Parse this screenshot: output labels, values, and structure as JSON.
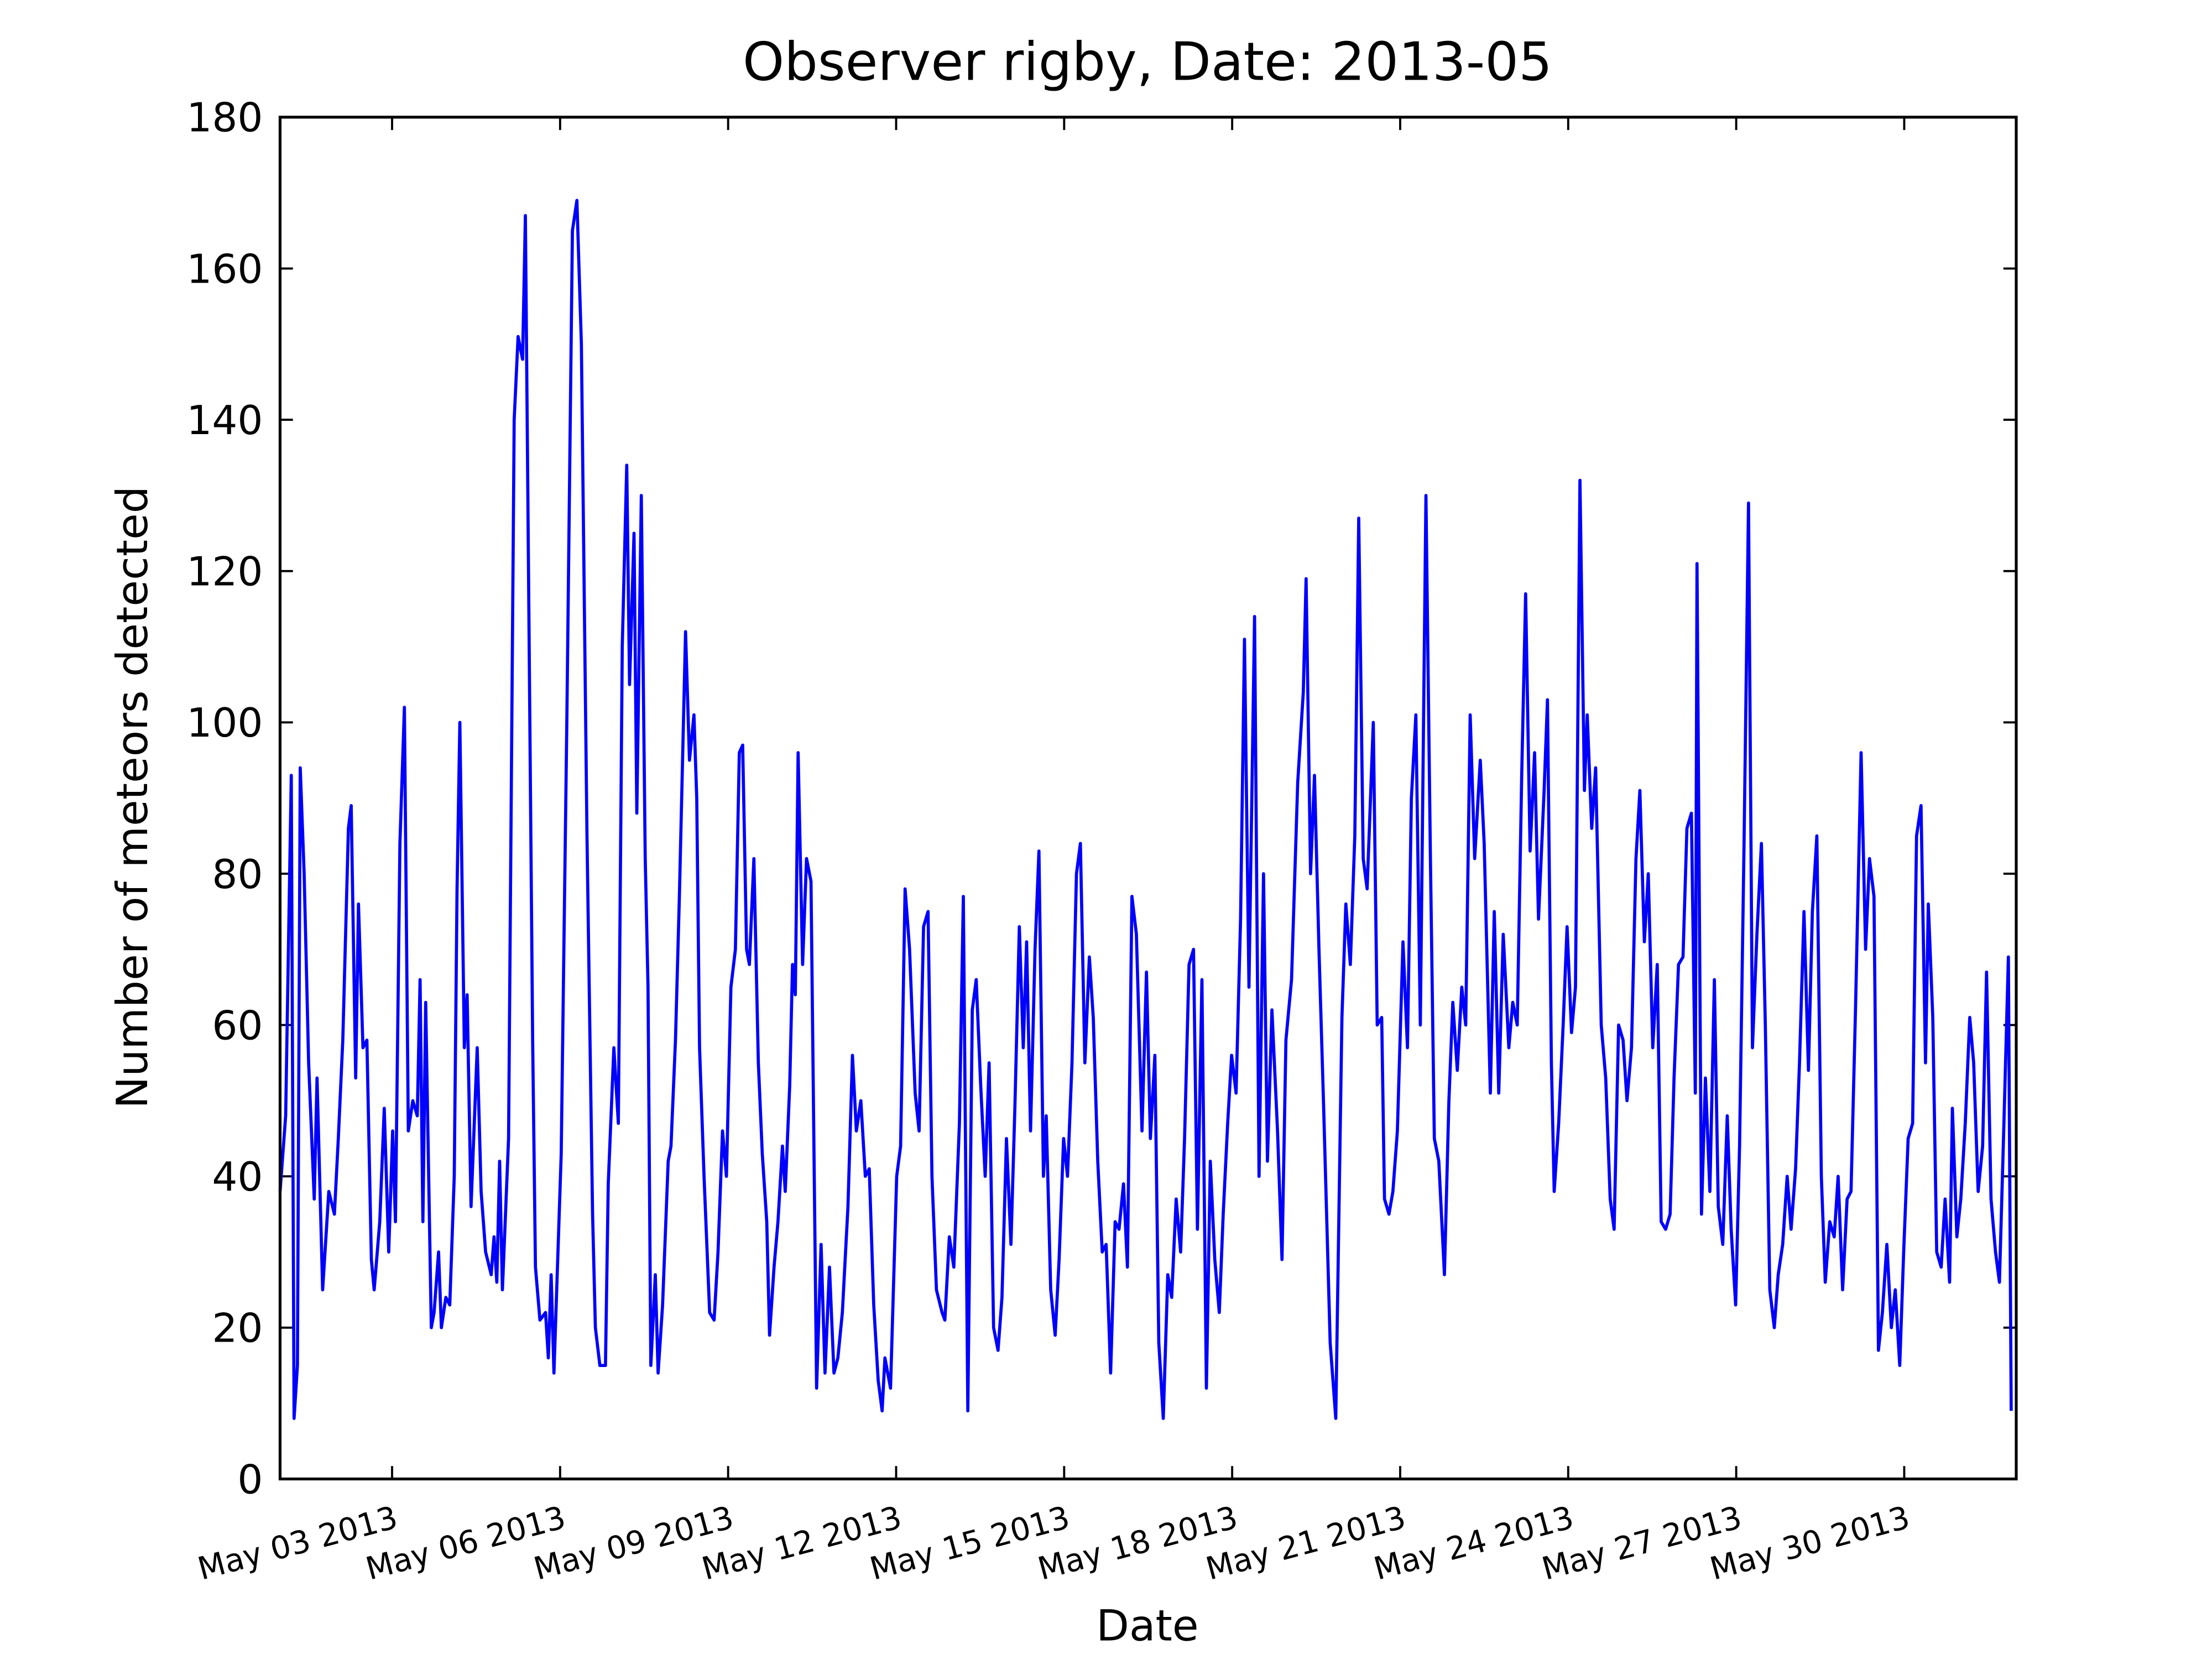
{
  "chart_data": {
    "type": "line",
    "title": "Observer rigby, Date: 2013-05",
    "x_label": "Date",
    "y_label": "Number of meteors detected",
    "color": "#0000ff",
    "xlim": [
      1,
      32
    ],
    "xticks": [
      {
        "value": 3,
        "label": "May 03 2013"
      },
      {
        "value": 6,
        "label": "May 06 2013"
      },
      {
        "value": 9,
        "label": "May 09 2013"
      },
      {
        "value": 12,
        "label": "May 12 2013"
      },
      {
        "value": 15,
        "label": "May 15 2013"
      },
      {
        "value": 18,
        "label": "May 18 2013"
      },
      {
        "value": 21,
        "label": "May 21 2013"
      },
      {
        "value": 24,
        "label": "May 24 2013"
      },
      {
        "value": 27,
        "label": "May 27 2013"
      },
      {
        "value": 30,
        "label": "May 30 2013"
      }
    ],
    "ylim": [
      0,
      180
    ],
    "yticks": [
      0,
      20,
      40,
      60,
      80,
      100,
      120,
      140,
      160,
      180
    ],
    "x": [
      1.0,
      1.1,
      1.2,
      1.25,
      1.31,
      1.36,
      1.43,
      1.51,
      1.61,
      1.66,
      1.76,
      1.87,
      1.97,
      2.04,
      2.12,
      2.22,
      2.27,
      2.35,
      2.4,
      2.48,
      2.55,
      2.63,
      2.68,
      2.78,
      2.86,
      2.94,
      3.01,
      3.06,
      3.14,
      3.22,
      3.29,
      3.37,
      3.45,
      3.5,
      3.55,
      3.6,
      3.7,
      3.75,
      3.83,
      3.88,
      3.96,
      4.03,
      4.11,
      4.16,
      4.21,
      4.29,
      4.34,
      4.41,
      4.52,
      4.59,
      4.67,
      4.77,
      4.82,
      4.87,
      4.92,
      4.97,
      5.08,
      5.18,
      5.25,
      5.33,
      5.38,
      5.46,
      5.51,
      5.56,
      5.64,
      5.74,
      5.79,
      5.84,
      5.89,
      6.02,
      6.12,
      6.22,
      6.3,
      6.38,
      6.48,
      6.58,
      6.63,
      6.71,
      6.81,
      6.86,
      6.96,
      7.04,
      7.11,
      7.19,
      7.24,
      7.32,
      7.37,
      7.45,
      7.52,
      7.57,
      7.62,
      7.7,
      7.75,
      7.83,
      7.93,
      7.98,
      8.06,
      8.13,
      8.24,
      8.31,
      8.39,
      8.44,
      8.49,
      8.57,
      8.67,
      8.75,
      8.82,
      8.9,
      8.97,
      9.05,
      9.13,
      9.2,
      9.26,
      9.33,
      9.38,
      9.46,
      9.54,
      9.61,
      9.69,
      9.74,
      9.82,
      9.89,
      9.97,
      10.02,
      10.1,
      10.15,
      10.2,
      10.25,
      10.33,
      10.4,
      10.48,
      10.58,
      10.66,
      10.73,
      10.81,
      10.89,
      10.96,
      11.04,
      11.14,
      11.22,
      11.29,
      11.37,
      11.45,
      11.52,
      11.6,
      11.68,
      11.75,
      11.8,
      11.9,
      12.01,
      12.08,
      12.16,
      12.24,
      12.34,
      12.41,
      12.49,
      12.57,
      12.64,
      12.72,
      12.82,
      12.87,
      12.95,
      13.03,
      13.13,
      13.2,
      13.28,
      13.36,
      13.43,
      13.51,
      13.59,
      13.66,
      13.74,
      13.82,
      13.89,
      13.97,
      14.05,
      14.12,
      14.2,
      14.27,
      14.33,
      14.4,
      14.48,
      14.55,
      14.63,
      14.68,
      14.76,
      14.84,
      14.91,
      14.99,
      15.06,
      15.14,
      15.22,
      15.29,
      15.37,
      15.45,
      15.52,
      15.6,
      15.68,
      15.75,
      15.83,
      15.91,
      15.98,
      16.06,
      16.13,
      16.21,
      16.29,
      16.39,
      16.47,
      16.54,
      16.62,
      16.69,
      16.77,
      16.85,
      16.92,
      17.0,
      17.08,
      17.15,
      17.23,
      17.31,
      17.38,
      17.46,
      17.54,
      17.61,
      17.69,
      17.77,
      17.84,
      17.92,
      17.99,
      18.07,
      18.15,
      18.22,
      18.3,
      18.4,
      18.48,
      18.56,
      18.63,
      18.71,
      18.81,
      18.89,
      18.96,
      19.06,
      19.17,
      19.27,
      19.32,
      19.4,
      19.47,
      19.55,
      19.63,
      19.75,
      19.85,
      19.96,
      20.03,
      20.11,
      20.19,
      20.26,
      20.34,
      20.41,
      20.52,
      20.59,
      20.67,
      20.72,
      20.8,
      20.87,
      20.95,
      21.05,
      21.13,
      21.2,
      21.28,
      21.36,
      21.46,
      21.54,
      21.61,
      21.69,
      21.79,
      21.87,
      21.94,
      22.02,
      22.1,
      22.17,
      22.25,
      22.33,
      22.43,
      22.5,
      22.61,
      22.68,
      22.76,
      22.84,
      22.94,
      23.01,
      23.09,
      23.17,
      23.24,
      23.32,
      23.4,
      23.47,
      23.57,
      23.63,
      23.7,
      23.75,
      23.83,
      23.91,
      23.98,
      24.06,
      24.13,
      24.21,
      24.29,
      24.34,
      24.42,
      24.49,
      24.59,
      24.67,
      24.75,
      24.82,
      24.9,
      24.98,
      25.05,
      25.13,
      25.21,
      25.28,
      25.36,
      25.43,
      25.51,
      25.59,
      25.66,
      25.74,
      25.82,
      25.89,
      25.97,
      26.05,
      26.12,
      26.2,
      26.27,
      26.3,
      26.38,
      26.45,
      26.53,
      26.61,
      26.68,
      26.76,
      26.84,
      26.91,
      26.99,
      27.06,
      27.14,
      27.22,
      27.29,
      27.37,
      27.45,
      27.52,
      27.6,
      27.68,
      27.75,
      27.83,
      27.91,
      27.98,
      28.06,
      28.13,
      28.21,
      28.29,
      28.36,
      28.44,
      28.52,
      28.59,
      28.67,
      28.75,
      28.82,
      28.9,
      28.98,
      29.05,
      29.13,
      29.23,
      29.31,
      29.38,
      29.46,
      29.54,
      29.61,
      29.69,
      29.77,
      29.84,
      29.92,
      29.99,
      30.07,
      30.15,
      30.22,
      30.3,
      30.38,
      30.43,
      30.51,
      30.58,
      30.66,
      30.73,
      30.81,
      30.86,
      30.94,
      31.01,
      31.09,
      31.17,
      31.24,
      31.32,
      31.4,
      31.47,
      31.55,
      31.63,
      31.7,
      31.78,
      31.86,
      31.91
    ],
    "values": [
      38,
      48,
      93,
      8,
      15,
      94,
      80,
      55,
      37,
      53,
      25,
      38,
      35,
      45,
      58,
      86,
      89,
      53,
      76,
      57,
      58,
      29,
      25,
      34,
      49,
      30,
      46,
      34,
      84,
      102,
      46,
      50,
      48,
      66,
      34,
      63,
      20,
      22,
      30,
      20,
      24,
      23,
      40,
      78,
      100,
      57,
      64,
      36,
      57,
      38,
      30,
      27,
      32,
      26,
      42,
      25,
      45,
      140,
      151,
      148,
      167,
      100,
      58,
      28,
      21,
      22,
      16,
      27,
      14,
      43,
      100,
      165,
      169,
      150,
      85,
      35,
      20,
      15,
      15,
      39,
      57,
      47,
      110,
      134,
      105,
      125,
      88,
      130,
      82,
      65,
      15,
      27,
      14,
      23,
      42,
      44,
      58,
      77,
      112,
      95,
      101,
      90,
      57,
      40,
      22,
      21,
      30,
      46,
      40,
      65,
      70,
      96,
      97,
      70,
      68,
      82,
      55,
      43,
      34,
      19,
      28,
      34,
      44,
      38,
      52,
      68,
      64,
      96,
      68,
      82,
      79,
      12,
      31,
      14,
      28,
      14,
      16,
      22,
      36,
      56,
      46,
      50,
      40,
      41,
      23,
      13,
      9,
      16,
      12,
      40,
      44,
      78,
      70,
      51,
      46,
      73,
      75,
      40,
      25,
      22,
      21,
      32,
      28,
      47,
      77,
      9,
      62,
      66,
      52,
      40,
      55,
      20,
      17,
      24,
      45,
      31,
      49,
      73,
      57,
      71,
      46,
      70,
      83,
      40,
      48,
      25,
      19,
      29,
      45,
      40,
      55,
      80,
      84,
      55,
      69,
      61,
      42,
      30,
      31,
      14,
      34,
      33,
      39,
      28,
      77,
      72,
      46,
      67,
      45,
      56,
      18,
      8,
      27,
      24,
      37,
      30,
      45,
      68,
      70,
      33,
      66,
      12,
      42,
      29,
      22,
      35,
      47,
      56,
      51,
      74,
      111,
      65,
      114,
      40,
      80,
      42,
      62,
      46,
      29,
      58,
      66,
      92,
      104,
      119,
      80,
      93,
      70,
      50,
      18,
      8,
      61,
      76,
      68,
      85,
      127,
      82,
      78,
      100,
      60,
      61,
      37,
      35,
      38,
      46,
      71,
      57,
      90,
      101,
      60,
      130,
      82,
      45,
      42,
      27,
      50,
      63,
      54,
      65,
      60,
      101,
      82,
      95,
      84,
      51,
      75,
      51,
      72,
      57,
      63,
      60,
      93,
      117,
      83,
      96,
      74,
      91,
      103,
      55,
      38,
      47,
      60,
      73,
      59,
      65,
      132,
      91,
      101,
      86,
      94,
      60,
      53,
      37,
      33,
      60,
      58,
      50,
      57,
      82,
      91,
      71,
      80,
      57,
      68,
      34,
      33,
      35,
      53,
      68,
      69,
      86,
      88,
      51,
      121,
      35,
      53,
      38,
      66,
      36,
      31,
      48,
      33,
      23,
      44,
      84,
      129,
      57,
      72,
      84,
      60,
      25,
      20,
      27,
      31,
      40,
      33,
      41,
      55,
      75,
      54,
      75,
      85,
      40,
      26,
      34,
      32,
      40,
      25,
      37,
      38,
      62,
      96,
      70,
      82,
      77,
      17,
      22,
      31,
      20,
      25,
      15,
      30,
      45,
      47,
      85,
      89,
      55,
      76,
      61,
      30,
      28,
      37,
      26,
      49,
      32,
      37,
      47,
      61,
      55,
      38,
      44,
      67,
      37,
      30,
      26,
      47,
      69,
      9
    ]
  }
}
